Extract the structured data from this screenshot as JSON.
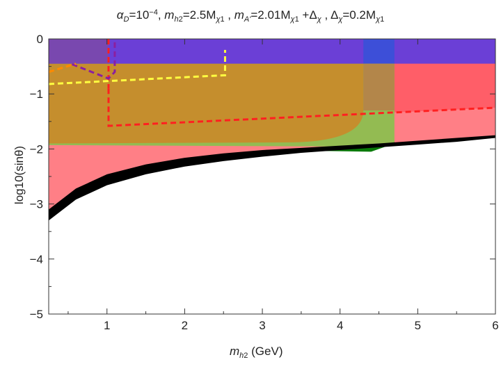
{
  "chart_data": {
    "type": "area",
    "title_parts": {
      "alpha": "α",
      "alpha_sub": "D",
      "alpha_eq": "=10",
      "alpha_exp": "−4",
      "sep1": ", ",
      "mh2": "m",
      "mh2_sub": "h",
      "mh2_subsub": "2",
      "mh2_eq": "=2.5M",
      "mh2_chi": "χ",
      "mh2_chi_sub": "1",
      "sep2": " , ",
      "ma": "m",
      "ma_sub": "A'",
      "ma_eq": "=2.01M",
      "ma_chi": "χ",
      "ma_chi_sub": "1",
      "ma_plus": " +Δ",
      "ma_delta_sub": "χ",
      "sep3": " , ",
      "delta": "Δ",
      "delta_sub": "χ",
      "delta_eq": "=0.2M",
      "delta_chi": "χ",
      "delta_chi_sub": "1"
    },
    "xlabel_parts": {
      "m": "m",
      "sub": "h",
      "subsub": "2",
      "unit": " (GeV)"
    },
    "ylabel": "log10(sinθ)",
    "xlim": [
      0.25,
      6
    ],
    "ylim": [
      -5,
      0
    ],
    "xticks": [
      1,
      2,
      3,
      4,
      5,
      6
    ],
    "yticks": [
      0,
      -1,
      -2,
      -3,
      -4,
      -5
    ],
    "ytick_labels": [
      "0",
      "−1",
      "−2",
      "−3",
      "−4",
      "−5"
    ],
    "regions": [
      {
        "name": "pink",
        "color": "#ff7f86",
        "x": [
          0.25,
          0.6,
          1,
          1.5,
          2,
          2.5,
          3,
          3.5,
          4,
          4.5,
          5,
          5.5,
          6
        ],
        "y_lower": [
          -3.25,
          -2.88,
          -2.62,
          -2.42,
          -2.3,
          -2.2,
          -2.12,
          -2.06,
          -2.0,
          -1.95,
          -1.9,
          -1.86,
          -1.8
        ]
      },
      {
        "name": "red-darker-top",
        "color": "#ff5e68",
        "x": [
          1.1,
          6
        ],
        "y": [
          -0.45,
          -1.55
        ]
      },
      {
        "name": "black-band",
        "color": "#000000",
        "x": [
          0.25,
          0.6,
          1,
          1.5,
          2,
          2.5,
          3,
          3.5,
          4,
          4.5,
          5,
          5.5,
          6
        ],
        "y_upper": [
          -3.1,
          -2.72,
          -2.46,
          -2.28,
          -2.16,
          -2.08,
          -2.02,
          -1.98,
          -1.94,
          -1.9,
          -1.85,
          -1.8,
          -1.75
        ],
        "y_lower": [
          -3.3,
          -2.92,
          -2.66,
          -2.46,
          -2.32,
          -2.22,
          -2.14,
          -2.07,
          -2.02,
          -1.97,
          -1.92,
          -1.87,
          -1.8
        ]
      },
      {
        "name": "green",
        "color": "#8dbf4f",
        "x": [
          0.25,
          4.7
        ],
        "y": [
          0,
          -1.92
        ]
      },
      {
        "name": "dark-green",
        "color": "#0a7a0a",
        "x_approx": [
          3.5,
          4.7
        ],
        "y_approx": [
          -1.9,
          -2.05
        ]
      },
      {
        "name": "orange",
        "color": "#c98a2a",
        "x": [
          0.25,
          4.3
        ],
        "y_top": -0.45,
        "y_bottom": -1.9
      },
      {
        "name": "blue-purple",
        "color": "#6b3fd6",
        "x": [
          0.25,
          6
        ],
        "y": [
          0,
          -0.45
        ]
      }
    ],
    "dashed_lines": [
      {
        "color": "#ff2020",
        "points": [
          [
            1.02,
            -0.9
          ],
          [
            1.02,
            -1.58
          ],
          [
            6,
            -1.25
          ]
        ]
      },
      {
        "color": "#ff2020",
        "points": [
          [
            1.02,
            0
          ],
          [
            1.02,
            -0.9
          ]
        ]
      },
      {
        "color": "#ffff40",
        "points": [
          [
            0.25,
            -0.82
          ],
          [
            2.52,
            -0.66
          ],
          [
            2.52,
            -0.2
          ]
        ]
      },
      {
        "color": "#8b1fa0",
        "points": [
          [
            0.55,
            -0.46
          ],
          [
            1.02,
            -0.72
          ],
          [
            1.1,
            -0.6
          ],
          [
            1.1,
            0
          ]
        ]
      },
      {
        "color": "#ff8a00",
        "points": [
          [
            0.25,
            -0.6
          ],
          [
            0.6,
            -0.45
          ]
        ]
      }
    ]
  }
}
